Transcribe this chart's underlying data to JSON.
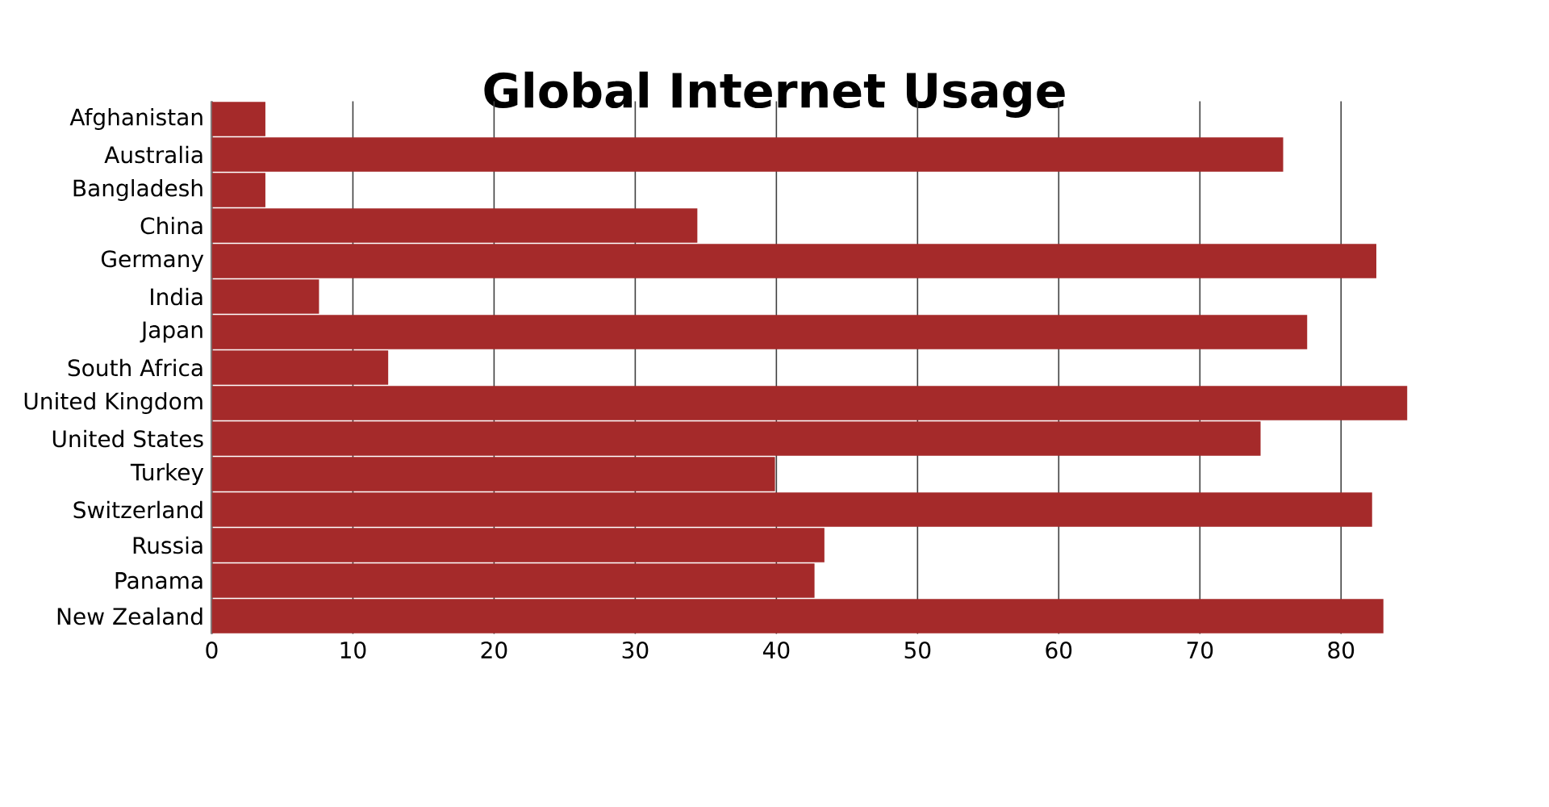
{
  "chart_data": {
    "type": "bar",
    "orientation": "horizontal",
    "title": "Global Internet Usage",
    "categories": [
      "Afghanistan",
      "Australia",
      "Bangladesh",
      "China",
      "Germany",
      "India",
      "Japan",
      "South Africa",
      "United Kingdom",
      "United States",
      "Turkey",
      "Switzerland",
      "Russia",
      "Panama",
      "New Zealand"
    ],
    "values": [
      3.8,
      75.9,
      3.8,
      34.4,
      82.5,
      7.6,
      77.6,
      12.5,
      84.7,
      74.3,
      39.9,
      82.2,
      43.4,
      42.7,
      83.0
    ],
    "color": "#a52a2a",
    "xlim": [
      0,
      84.7
    ],
    "xticks": [
      0,
      10,
      20,
      30,
      40,
      50,
      60,
      70,
      80
    ],
    "grid": "x"
  }
}
